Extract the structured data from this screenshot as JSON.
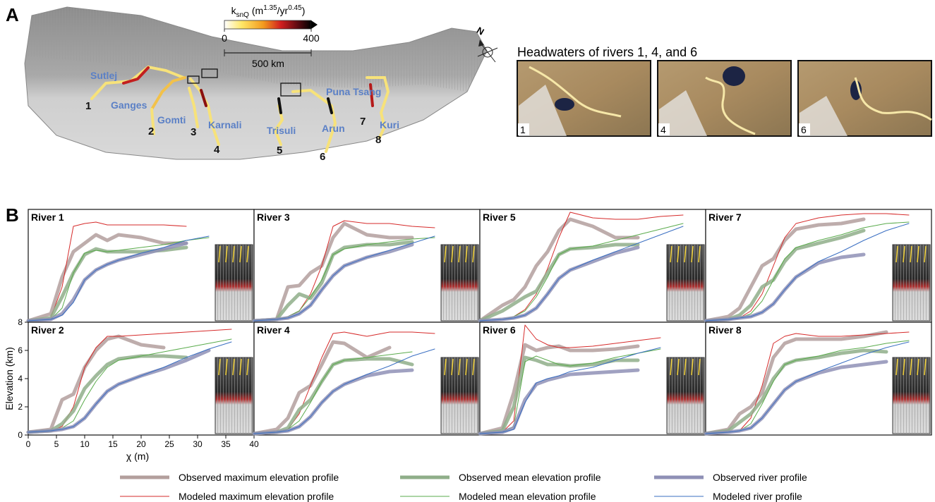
{
  "map": {
    "panel_label": "A",
    "colorbar": {
      "title": [
        "k",
        "snQ",
        " (m",
        "1.35",
        "/yr",
        "0.45",
        ")"
      ],
      "ticks": [
        0,
        400
      ]
    },
    "scale_label": "500 km",
    "north": "N",
    "rivers": [
      {
        "name": "Sutlej",
        "number": 1
      },
      {
        "name": "Ganges",
        "number": 2
      },
      {
        "name": "Gomti",
        "number": 3
      },
      {
        "name": "Karnali",
        "number": 4
      },
      {
        "name": "Trisuli",
        "number": 5
      },
      {
        "name": "Arun",
        "number": 6
      },
      {
        "name": "Puna Tsang",
        "number": 7
      },
      {
        "name": "Kuri",
        "number": 8
      }
    ],
    "headwaters": {
      "title": "Headwaters of rivers 1, 4, and 6",
      "panels": [
        1,
        4,
        6
      ]
    }
  },
  "panel_b_label": "B",
  "legend": [
    {
      "name": "Observed maximum elevation profile",
      "color": "#b39f9d",
      "width": 5
    },
    {
      "name": "Modeled maximum elevation profile",
      "color": "#d62a2a",
      "width": 1
    },
    {
      "name": "Observed mean elevation profile",
      "color": "#8fae89",
      "width": 5
    },
    {
      "name": "Modeled mean elevation profile",
      "color": "#5aab4c",
      "width": 1
    },
    {
      "name": "Observed river profile",
      "color": "#8f90b6",
      "width": 5
    },
    {
      "name": "Modeled river profile",
      "color": "#3a6fc2",
      "width": 1
    }
  ],
  "chart_data": [
    {
      "type": "line",
      "title": "River 1",
      "x": [
        0,
        4,
        6,
        8,
        10,
        12,
        14,
        16,
        20,
        24,
        28,
        32,
        36
      ],
      "xlim": [
        0,
        40
      ],
      "ylim": [
        0,
        8
      ],
      "series": [
        {
          "values": [
            0.1,
            0.6,
            3.2,
            5.0,
            5.6,
            6.2,
            5.8,
            6.2,
            6.0,
            5.6,
            5.6,
            null,
            null
          ]
        },
        {
          "values": [
            0.1,
            0.3,
            2.5,
            6.8,
            7.0,
            7.1,
            6.9,
            6.9,
            6.9,
            6.9,
            6.8,
            null,
            null
          ]
        },
        {
          "values": [
            0.1,
            0.3,
            1.8,
            3.5,
            4.8,
            5.2,
            5.0,
            5.0,
            5.0,
            5.1,
            5.3,
            null,
            null
          ]
        },
        {
          "values": [
            0.1,
            0.2,
            1.0,
            3.5,
            4.9,
            5.1,
            5.0,
            5.1,
            5.3,
            5.5,
            5.8,
            6.0,
            null
          ]
        },
        {
          "values": [
            0.1,
            0.2,
            0.6,
            1.6,
            3.0,
            3.7,
            4.1,
            4.4,
            4.8,
            5.2,
            5.6,
            null,
            null
          ]
        },
        {
          "values": [
            0.1,
            0.2,
            0.5,
            1.4,
            3.0,
            3.7,
            4.1,
            4.4,
            4.9,
            5.3,
            5.8,
            6.1,
            null
          ]
        }
      ]
    },
    {
      "type": "line",
      "title": "River 2",
      "x": [
        0,
        4,
        6,
        8,
        10,
        12,
        14,
        16,
        20,
        24,
        28,
        32,
        36
      ],
      "xlim": [
        0,
        40
      ],
      "ylim": [
        0,
        8
      ],
      "xlabel": "χ (m)",
      "ylabel": "Elevation (km)",
      "xticks": [
        0,
        5,
        10,
        15,
        20,
        25,
        30,
        35,
        40
      ],
      "yticks": [
        0,
        2,
        4,
        6,
        8
      ],
      "series": [
        {
          "values": [
            0.2,
            0.4,
            2.5,
            2.9,
            4.8,
            6.0,
            6.8,
            7.0,
            6.4,
            6.2,
            null,
            null,
            null
          ]
        },
        {
          "values": [
            0.2,
            0.3,
            0.6,
            2.0,
            4.8,
            6.2,
            7.0,
            7.0,
            7.1,
            7.2,
            7.3,
            7.4,
            7.5
          ]
        },
        {
          "values": [
            0.2,
            0.3,
            0.8,
            1.7,
            3.3,
            4.2,
            5.0,
            5.4,
            5.6,
            5.6,
            5.5,
            null,
            null
          ]
        },
        {
          "values": [
            0.2,
            0.3,
            0.5,
            1.0,
            2.5,
            3.8,
            4.8,
            5.3,
            5.6,
            5.9,
            6.2,
            6.5,
            6.8
          ]
        },
        {
          "values": [
            0.2,
            0.3,
            0.4,
            0.6,
            1.2,
            2.2,
            3.1,
            3.6,
            4.2,
            4.7,
            5.3,
            6.0,
            null
          ]
        },
        {
          "values": [
            0.2,
            0.3,
            0.4,
            0.6,
            1.2,
            2.2,
            3.1,
            3.6,
            4.2,
            4.8,
            5.5,
            6.1,
            6.6
          ]
        }
      ]
    },
    {
      "type": "line",
      "title": "River 3",
      "x": [
        0,
        4,
        6,
        8,
        10,
        12,
        14,
        16,
        20,
        24,
        28,
        32,
        36
      ],
      "xlim": [
        0,
        40
      ],
      "ylim": [
        0,
        8
      ],
      "series": [
        {
          "values": [
            0.1,
            0.2,
            2.5,
            2.6,
            3.5,
            4.0,
            6.0,
            7.0,
            6.2,
            6.0,
            6.0,
            null,
            null
          ]
        },
        {
          "values": [
            0.1,
            0.2,
            0.4,
            0.8,
            2.0,
            4.0,
            6.8,
            7.2,
            7.0,
            7.0,
            6.8,
            6.7,
            null
          ]
        },
        {
          "values": [
            0.1,
            0.2,
            1.2,
            2.0,
            1.7,
            2.8,
            4.8,
            5.3,
            5.5,
            5.5,
            5.7,
            null,
            null
          ]
        },
        {
          "values": [
            0.1,
            0.2,
            0.4,
            0.8,
            1.8,
            3.0,
            4.8,
            5.2,
            5.5,
            5.7,
            5.9,
            6.0,
            null
          ]
        },
        {
          "values": [
            0.1,
            0.2,
            0.3,
            0.6,
            1.2,
            2.3,
            3.3,
            4.0,
            4.6,
            5.0,
            5.5,
            null,
            null
          ]
        },
        {
          "values": [
            0.1,
            0.2,
            0.3,
            0.6,
            1.2,
            2.3,
            3.3,
            4.0,
            4.6,
            5.1,
            5.6,
            6.1,
            null
          ]
        }
      ]
    },
    {
      "type": "line",
      "title": "River 4",
      "x": [
        0,
        4,
        6,
        8,
        10,
        12,
        14,
        16,
        20,
        24,
        28,
        32,
        36
      ],
      "xlim": [
        0,
        40
      ],
      "ylim": [
        0,
        8
      ],
      "series": [
        {
          "values": [
            0.1,
            0.4,
            1.2,
            3.0,
            3.5,
            5.0,
            6.6,
            6.5,
            5.5,
            6.2,
            null,
            null,
            null
          ]
        },
        {
          "values": [
            0.1,
            0.2,
            0.4,
            1.5,
            3.5,
            5.5,
            7.2,
            7.3,
            7.0,
            7.3,
            7.3,
            7.2,
            null
          ]
        },
        {
          "values": [
            0.1,
            0.2,
            0.5,
            1.8,
            2.5,
            3.8,
            5.0,
            5.3,
            5.4,
            5.4,
            5.0,
            null,
            null
          ]
        },
        {
          "values": [
            0.1,
            0.2,
            0.4,
            1.0,
            2.3,
            3.8,
            5.0,
            5.3,
            5.5,
            5.7,
            5.9,
            null,
            null
          ]
        },
        {
          "values": [
            0.1,
            0.2,
            0.3,
            0.6,
            1.3,
            2.3,
            3.1,
            3.6,
            4.2,
            4.5,
            4.6,
            null,
            null
          ]
        },
        {
          "values": [
            0.1,
            0.2,
            0.3,
            0.6,
            1.3,
            2.3,
            3.1,
            3.6,
            4.3,
            4.9,
            5.6,
            6.1,
            null
          ]
        }
      ]
    },
    {
      "type": "line",
      "title": "River 5",
      "x": [
        0,
        4,
        6,
        8,
        10,
        12,
        14,
        16,
        20,
        24,
        28,
        32,
        36
      ],
      "xlim": [
        0,
        40
      ],
      "ylim": [
        0,
        8
      ],
      "series": [
        {
          "values": [
            0.1,
            1.2,
            1.6,
            2.5,
            4.0,
            5.0,
            6.5,
            7.3,
            6.8,
            6.0,
            6.0,
            null,
            null
          ]
        },
        {
          "values": [
            0.1,
            0.2,
            0.4,
            0.9,
            2.0,
            3.8,
            6.0,
            7.8,
            7.4,
            7.3,
            7.3,
            7.5,
            7.6
          ]
        },
        {
          "values": [
            0.1,
            0.8,
            1.3,
            1.8,
            2.2,
            3.5,
            4.8,
            5.2,
            5.3,
            5.5,
            5.5,
            null,
            null
          ]
        },
        {
          "values": [
            0.1,
            0.2,
            0.4,
            0.8,
            1.8,
            3.2,
            4.8,
            5.2,
            5.4,
            5.8,
            6.2,
            6.6,
            7.0
          ]
        },
        {
          "values": [
            0.1,
            0.2,
            0.3,
            0.5,
            1.0,
            2.0,
            3.1,
            3.7,
            4.3,
            4.9,
            5.3,
            null,
            null
          ]
        },
        {
          "values": [
            0.1,
            0.2,
            0.3,
            0.5,
            1.0,
            2.0,
            3.1,
            3.7,
            4.4,
            5.0,
            5.6,
            6.2,
            6.8
          ]
        }
      ]
    },
    {
      "type": "line",
      "title": "River 6",
      "x": [
        0,
        4,
        6,
        8,
        10,
        12,
        14,
        16,
        20,
        24,
        28,
        32,
        36
      ],
      "xlim": [
        0,
        40
      ],
      "ylim": [
        0,
        8
      ],
      "series": [
        {
          "values": [
            0.1,
            0.5,
            3.0,
            6.4,
            6.0,
            6.2,
            6.3,
            6.0,
            6.0,
            6.1,
            6.3,
            null,
            null
          ]
        },
        {
          "values": [
            0.1,
            0.2,
            1.0,
            7.8,
            6.8,
            6.4,
            6.2,
            6.2,
            6.3,
            6.5,
            6.7,
            6.9,
            null
          ]
        },
        {
          "values": [
            0.1,
            0.3,
            2.0,
            5.5,
            5.3,
            5.0,
            5.0,
            4.9,
            5.0,
            5.3,
            5.3,
            null,
            null
          ]
        },
        {
          "values": [
            0.1,
            0.2,
            0.6,
            5.2,
            5.6,
            5.3,
            5.0,
            4.9,
            5.1,
            5.5,
            5.8,
            6.1,
            null
          ]
        },
        {
          "values": [
            0.1,
            0.2,
            0.5,
            2.5,
            3.6,
            3.9,
            4.1,
            4.3,
            4.4,
            4.5,
            4.6,
            null,
            null
          ]
        },
        {
          "values": [
            0.1,
            0.2,
            0.4,
            2.3,
            3.7,
            4.0,
            4.2,
            4.5,
            4.8,
            5.3,
            5.8,
            6.2,
            null
          ]
        }
      ]
    },
    {
      "type": "line",
      "title": "River 7",
      "x": [
        0,
        4,
        6,
        8,
        10,
        12,
        14,
        16,
        20,
        24,
        28,
        32,
        36
      ],
      "xlim": [
        0,
        40
      ],
      "ylim": [
        0,
        8
      ],
      "series": [
        {
          "values": [
            0.1,
            0.4,
            1.0,
            2.5,
            4.0,
            4.5,
            5.8,
            6.6,
            6.9,
            7.0,
            7.3,
            null,
            null
          ]
        },
        {
          "values": [
            0.1,
            0.2,
            0.3,
            0.8,
            2.0,
            4.0,
            6.0,
            7.0,
            7.4,
            7.6,
            7.7,
            7.7,
            7.6
          ]
        },
        {
          "values": [
            0.1,
            0.2,
            0.5,
            1.2,
            2.5,
            3.0,
            4.3,
            5.2,
            5.6,
            6.0,
            6.5,
            null,
            null
          ]
        },
        {
          "values": [
            0.1,
            0.2,
            0.3,
            0.6,
            1.5,
            3.0,
            4.5,
            5.3,
            5.8,
            6.2,
            6.7,
            7.0,
            7.1
          ]
        },
        {
          "values": [
            0.1,
            0.2,
            0.3,
            0.4,
            0.7,
            1.3,
            2.3,
            3.2,
            4.2,
            4.6,
            4.8,
            null,
            null
          ]
        },
        {
          "values": [
            0.1,
            0.2,
            0.3,
            0.4,
            0.7,
            1.3,
            2.3,
            3.2,
            4.3,
            5.0,
            5.8,
            6.5,
            7.0
          ]
        }
      ]
    },
    {
      "type": "line",
      "title": "River 8",
      "x": [
        0,
        4,
        6,
        8,
        10,
        12,
        14,
        16,
        20,
        24,
        28,
        32,
        36
      ],
      "xlim": [
        0,
        40
      ],
      "ylim": [
        0,
        8
      ],
      "series": [
        {
          "values": [
            0.1,
            0.4,
            1.5,
            2.0,
            3.0,
            5.5,
            6.5,
            6.8,
            6.8,
            6.8,
            7.0,
            7.3,
            null
          ]
        },
        {
          "values": [
            0.1,
            0.2,
            0.3,
            1.2,
            3.5,
            6.5,
            7.0,
            7.2,
            7.0,
            7.0,
            7.1,
            7.2,
            7.3
          ]
        },
        {
          "values": [
            0.1,
            0.3,
            0.9,
            1.5,
            2.5,
            4.0,
            5.0,
            5.3,
            5.5,
            5.8,
            6.0,
            5.9,
            null
          ]
        },
        {
          "values": [
            0.1,
            0.2,
            0.3,
            0.8,
            2.2,
            3.8,
            5.0,
            5.3,
            5.6,
            6.0,
            6.2,
            6.5,
            6.7
          ]
        },
        {
          "values": [
            0.1,
            0.2,
            0.3,
            0.5,
            1.2,
            2.2,
            3.2,
            3.8,
            4.4,
            4.8,
            5.0,
            5.2,
            null
          ]
        },
        {
          "values": [
            0.1,
            0.2,
            0.3,
            0.5,
            1.2,
            2.2,
            3.2,
            3.8,
            4.5,
            5.1,
            5.7,
            6.2,
            6.6
          ]
        }
      ]
    }
  ]
}
